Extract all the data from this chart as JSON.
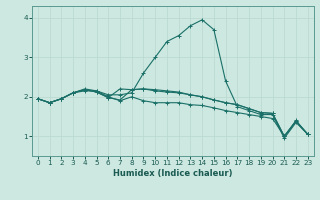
{
  "xlabel": "Humidex (Indice chaleur)",
  "ylabel": "",
  "xlim": [
    -0.5,
    23.5
  ],
  "ylim": [
    0.5,
    4.3
  ],
  "xticks": [
    0,
    1,
    2,
    3,
    4,
    5,
    6,
    7,
    8,
    9,
    10,
    11,
    12,
    13,
    14,
    15,
    16,
    17,
    18,
    19,
    20,
    21,
    22,
    23
  ],
  "yticks": [
    1,
    2,
    3,
    4
  ],
  "background_color": "#cce8e0",
  "grid_color": "#b8d8d0",
  "line_color": "#1a7068",
  "lines": [
    [
      1.95,
      1.85,
      1.95,
      2.1,
      2.15,
      2.15,
      2.0,
      1.9,
      2.0,
      1.9,
      1.85,
      1.85,
      1.85,
      1.8,
      1.78,
      1.72,
      1.65,
      1.6,
      1.55,
      1.5,
      1.45,
      1.0,
      1.4,
      1.05
    ],
    [
      1.95,
      1.85,
      1.95,
      2.1,
      2.2,
      2.15,
      2.05,
      2.05,
      2.1,
      2.6,
      3.0,
      3.4,
      3.55,
      3.8,
      3.95,
      3.7,
      2.4,
      1.75,
      1.65,
      1.55,
      1.55,
      0.95,
      1.35,
      1.05
    ],
    [
      1.95,
      1.85,
      1.95,
      2.1,
      2.18,
      2.12,
      1.98,
      1.92,
      2.18,
      2.2,
      2.18,
      2.15,
      2.12,
      2.05,
      2.0,
      1.92,
      1.85,
      1.8,
      1.7,
      1.6,
      1.58,
      1.0,
      1.38,
      1.05
    ],
    [
      1.95,
      1.85,
      1.95,
      2.1,
      2.18,
      2.12,
      1.98,
      2.2,
      2.18,
      2.2,
      2.15,
      2.12,
      2.1,
      2.05,
      2.0,
      1.92,
      1.85,
      1.8,
      1.7,
      1.6,
      1.58,
      1.0,
      1.38,
      1.05
    ]
  ],
  "xlabel_fontsize": 6.0,
  "tick_fontsize": 5.2
}
